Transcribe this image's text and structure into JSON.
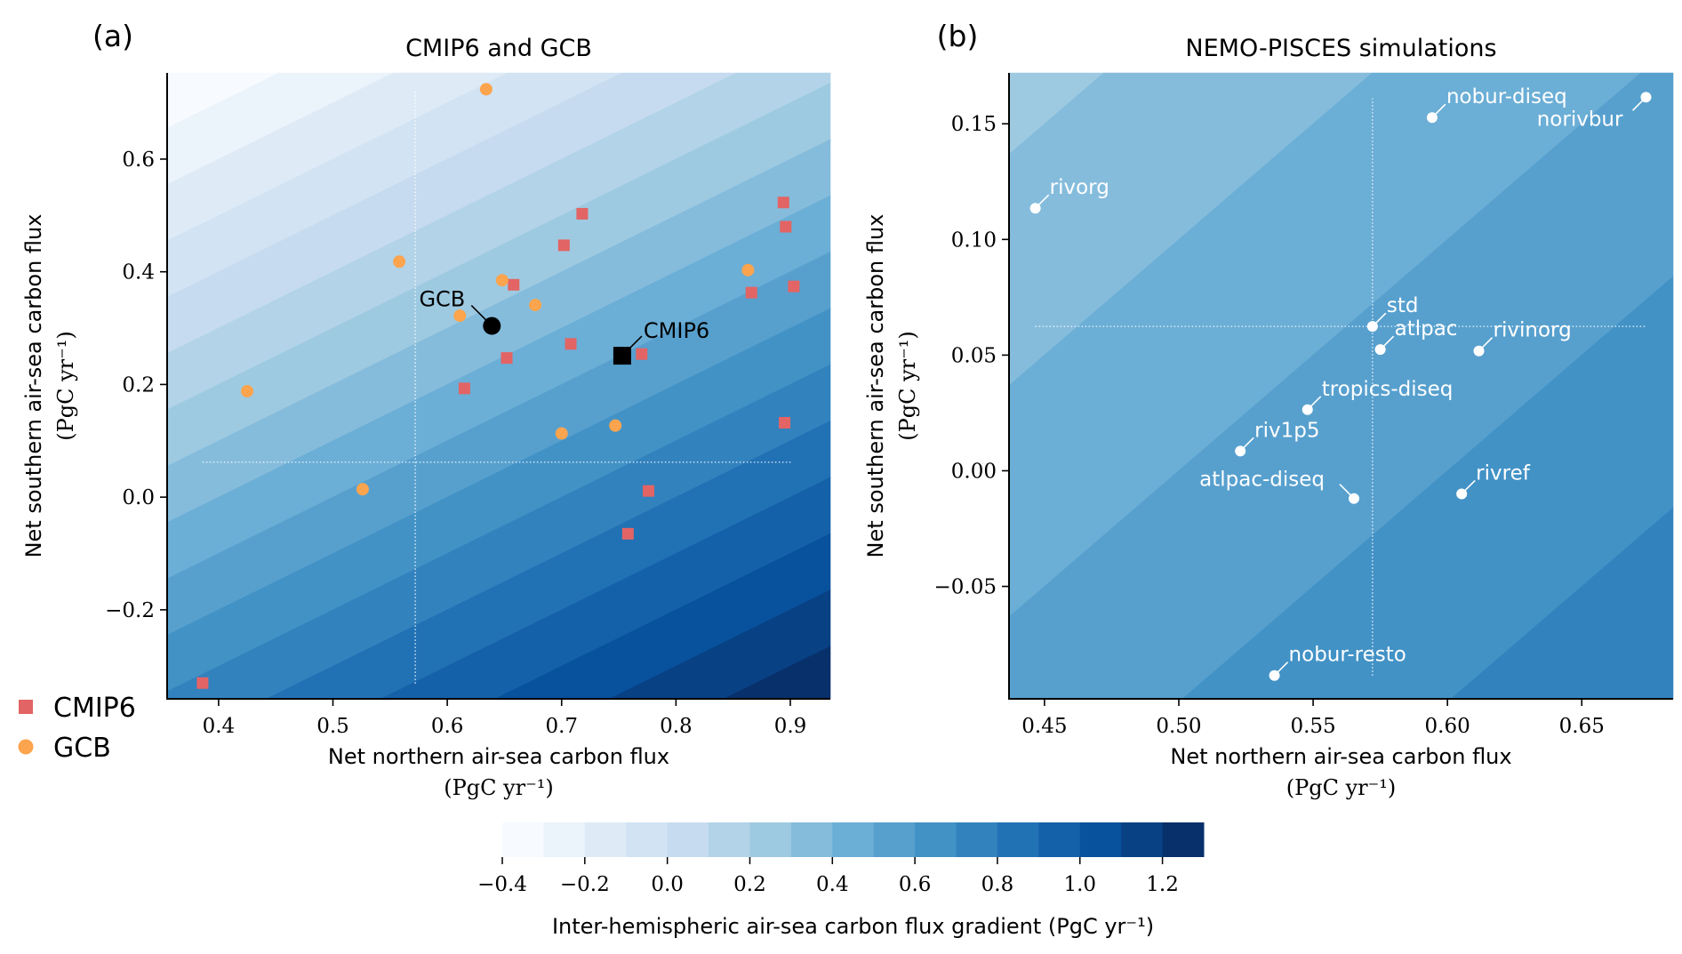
{
  "chart_data": [
    {
      "panel_label": "(a)",
      "title": "CMIP6 and GCB",
      "type": "scatter",
      "xlabel": "Net northern air-sea carbon flux",
      "xlabel_units": "(PgC yr⁻¹)",
      "ylabel": "Net southern air-sea carbon flux",
      "ylabel_units": "(PgC yr⁻¹)",
      "xlim": [
        0.355,
        0.935
      ],
      "ylim": [
        -0.358,
        0.753
      ],
      "xticks": [
        0.4,
        0.5,
        0.6,
        0.7,
        0.8,
        0.9
      ],
      "xtick_labels": [
        "0.4",
        "0.5",
        "0.6",
        "0.7",
        "0.8",
        "0.9"
      ],
      "yticks": [
        -0.2,
        0.0,
        0.2,
        0.4,
        0.6
      ],
      "ytick_labels": [
        "−0.2",
        "0.0",
        "0.2",
        "0.4",
        "0.6"
      ],
      "background": "filled contours of northern minus southern flux",
      "legend_placement": "lower-left outside",
      "series": [
        {
          "name": "CMIP6",
          "marker": "square",
          "color": "#e36464",
          "x": [
            0.894,
            0.718,
            0.896,
            0.702,
            0.658,
            0.903,
            0.866,
            0.708,
            0.77,
            0.652,
            0.615,
            0.895,
            0.776,
            0.758,
            0.386
          ],
          "y": [
            0.523,
            0.503,
            0.48,
            0.447,
            0.377,
            0.374,
            0.363,
            0.272,
            0.254,
            0.247,
            0.193,
            0.132,
            0.011,
            -0.065,
            -0.33
          ]
        },
        {
          "name": "GCB",
          "marker": "circle",
          "color": "#fca44e",
          "x": [
            0.634,
            0.558,
            0.648,
            0.863,
            0.677,
            0.611,
            0.425,
            0.7,
            0.747,
            0.526
          ],
          "y": [
            0.724,
            0.418,
            0.385,
            0.403,
            0.341,
            0.322,
            0.188,
            0.113,
            0.127,
            0.014
          ]
        }
      ],
      "means": [
        {
          "label": "GCB",
          "marker": "circle",
          "color": "#000000",
          "x": 0.639,
          "y": 0.304
        },
        {
          "label": "CMIP6",
          "marker": "square",
          "color": "#000000",
          "x": 0.753,
          "y": 0.251
        }
      ],
      "reference_lines": {
        "x": 0.572,
        "x_span": [
          -0.331,
          0.72
        ],
        "y": 0.062,
        "y_span": [
          0.386,
          0.902
        ],
        "style": "dotted",
        "color": "#ffffff"
      }
    },
    {
      "panel_label": "(b)",
      "title": "NEMO-PISCES simulations",
      "type": "scatter",
      "xlabel": "Net northern air-sea carbon flux",
      "xlabel_units": "(PgC yr⁻¹)",
      "ylabel": "Net southern air-sea carbon flux",
      "ylabel_units": "(PgC yr⁻¹)",
      "xlim": [
        0.4368,
        0.684
      ],
      "ylim": [
        -0.0986,
        0.172
      ],
      "xticks": [
        0.45,
        0.5,
        0.55,
        0.6,
        0.65
      ],
      "xtick_labels": [
        "0.45",
        "0.50",
        "0.55",
        "0.60",
        "0.65"
      ],
      "yticks": [
        -0.05,
        0.0,
        0.05,
        0.1,
        0.15
      ],
      "ytick_labels": [
        "−0.05",
        "0.00",
        "0.05",
        "0.10",
        "0.15"
      ],
      "background": "filled contours of northern minus southern flux",
      "points": [
        {
          "label": "nobur-diseq",
          "x": 0.5943,
          "y": 0.1527
        },
        {
          "label": "norivbur",
          "x": 0.6739,
          "y": 0.1615
        },
        {
          "label": "rivorg",
          "x": 0.4466,
          "y": 0.1135
        },
        {
          "label": "std",
          "x": 0.5721,
          "y": 0.0624
        },
        {
          "label": "atlpac",
          "x": 0.575,
          "y": 0.0524
        },
        {
          "label": "rivinorg",
          "x": 0.6117,
          "y": 0.0518
        },
        {
          "label": "tropics-diseq",
          "x": 0.5479,
          "y": 0.0264
        },
        {
          "label": "riv1p5",
          "x": 0.5229,
          "y": 0.0085
        },
        {
          "label": "atlpac-diseq",
          "x": 0.5652,
          "y": -0.012
        },
        {
          "label": "rivref",
          "x": 0.6053,
          "y": -0.01
        },
        {
          "label": "nobur-resto",
          "x": 0.5356,
          "y": -0.0885
        }
      ],
      "point_color": "#ffffff",
      "reference_lines": {
        "x": 0.5721,
        "x_span": [
          -0.0885,
          0.161
        ],
        "y": 0.0624,
        "y_span": [
          0.4466,
          0.6739
        ],
        "style": "dotted",
        "color": "#ffffff"
      }
    }
  ],
  "colorbar": {
    "label": "Inter-hemispheric air-sea carbon flux gradient (PgC yr⁻¹)",
    "colormap": "Blues",
    "levels": [
      -0.4,
      1.3
    ],
    "level_step": 0.1,
    "ticks": [
      -0.4,
      -0.2,
      0.0,
      0.2,
      0.4,
      0.6,
      0.8,
      1.0,
      1.2
    ],
    "tick_labels": [
      "−0.4",
      "−0.2",
      "0.0",
      "0.2",
      "0.4",
      "0.6",
      "0.8",
      "1.0",
      "1.2"
    ],
    "orientation": "horizontal"
  },
  "legend": {
    "entries": [
      {
        "label": "CMIP6",
        "marker": "square",
        "color": "#e36464"
      },
      {
        "label": "GCB",
        "marker": "circle",
        "color": "#fca44e"
      }
    ]
  }
}
